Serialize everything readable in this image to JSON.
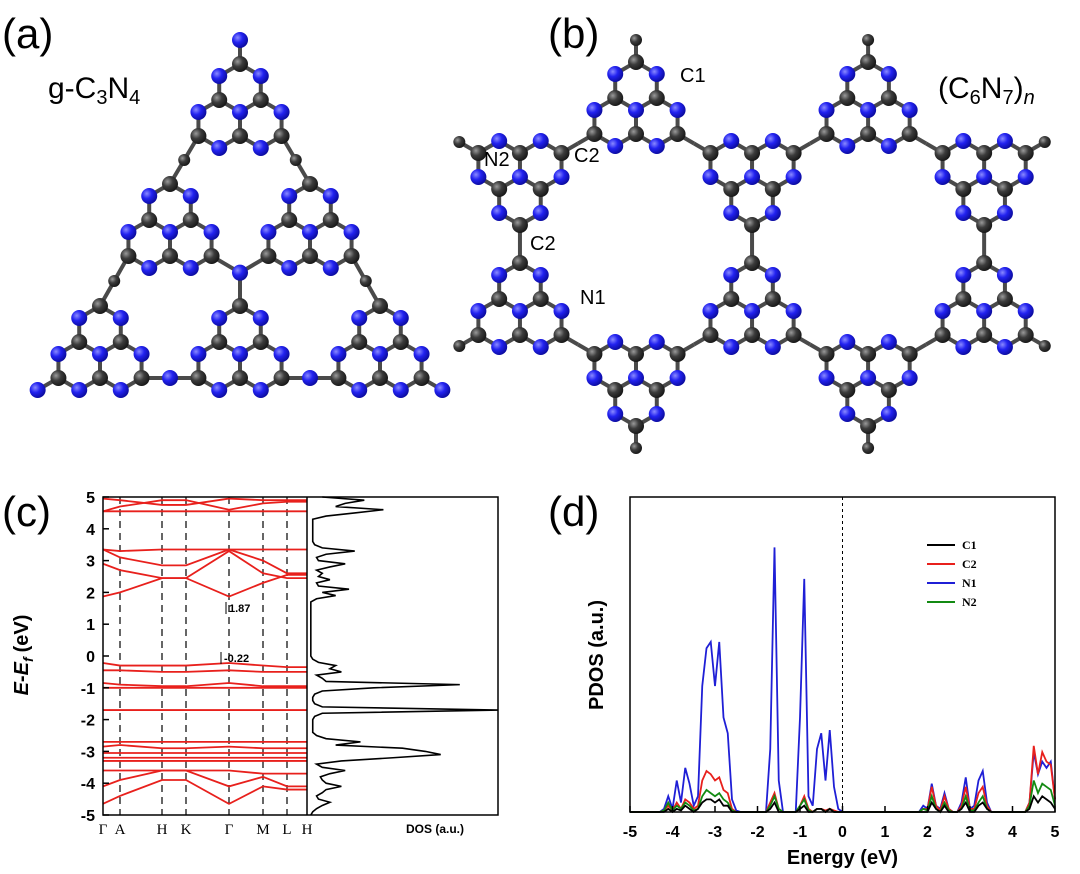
{
  "panels": {
    "a": "(a)",
    "b": "(b)",
    "c": "(c)",
    "d": "(d)"
  },
  "structure_a": {
    "formula": [
      "g-C",
      "3",
      "N",
      "4"
    ]
  },
  "structure_b": {
    "formula": [
      "(C",
      "6",
      "N",
      "7",
      ")",
      "n"
    ],
    "atom_labels": [
      "C1",
      "N2",
      "C2",
      "C2",
      "N1"
    ]
  },
  "chart_data": [
    {
      "type": "band",
      "y_label": [
        "E",
        "-",
        "E",
        "f",
        "(eV)"
      ],
      "categories": [
        "Γ",
        "A",
        "H",
        "K",
        "Γ",
        "M",
        "L",
        "H"
      ],
      "ylim": [
        -5,
        5
      ],
      "yticks": [
        -5,
        -4,
        -3,
        -2,
        -1,
        0,
        1,
        2,
        3,
        4,
        5
      ],
      "annotations": [
        "1.87",
        "-0.22"
      ],
      "series": [
        {
          "color": "#e8201c",
          "values": [
            4.55,
            4.55,
            4.55,
            4.55,
            4.55,
            4.55,
            4.55,
            4.55
          ]
        },
        {
          "color": "#e8201c",
          "values": [
            4.55,
            4.7,
            4.9,
            4.9,
            4.6,
            4.8,
            4.85,
            4.85
          ]
        },
        {
          "color": "#e8201c",
          "values": [
            4.95,
            4.9,
            4.75,
            4.75,
            4.95,
            4.9,
            4.9,
            4.9
          ]
        },
        {
          "color": "#e8201c",
          "values": [
            3.35,
            3.1,
            2.85,
            2.85,
            3.35,
            3.0,
            2.6,
            2.6
          ]
        },
        {
          "color": "#e8201c",
          "values": [
            3.35,
            3.3,
            3.35,
            3.35,
            3.35,
            3.35,
            3.35,
            3.35
          ]
        },
        {
          "color": "#e8201c",
          "values": [
            2.9,
            2.7,
            2.45,
            2.45,
            3.3,
            2.6,
            2.45,
            2.45
          ]
        },
        {
          "color": "#e8201c",
          "values": [
            1.87,
            2.0,
            2.45,
            2.45,
            1.87,
            2.3,
            2.55,
            2.55
          ]
        },
        {
          "color": "#e8201c",
          "values": [
            -0.22,
            -0.3,
            -0.3,
            -0.3,
            -0.22,
            -0.3,
            -0.35,
            -0.35
          ]
        },
        {
          "color": "#e8201c",
          "values": [
            -0.45,
            -0.45,
            -0.5,
            -0.5,
            -0.45,
            -0.5,
            -0.5,
            -0.5
          ]
        },
        {
          "color": "#e8201c",
          "values": [
            -0.85,
            -0.9,
            -0.95,
            -0.95,
            -0.85,
            -0.95,
            -0.95,
            -0.95
          ]
        },
        {
          "color": "#e8201c",
          "values": [
            -1.0,
            -1.0,
            -1.0,
            -1.0,
            -1.0,
            -1.0,
            -1.0,
            -1.0
          ]
        },
        {
          "color": "#e8201c",
          "values": [
            -1.7,
            -1.7,
            -1.7,
            -1.7,
            -1.7,
            -1.7,
            -1.7,
            -1.7
          ]
        },
        {
          "color": "#e8201c",
          "values": [
            -2.7,
            -2.7,
            -2.7,
            -2.7,
            -2.7,
            -2.7,
            -2.7,
            -2.7
          ]
        },
        {
          "color": "#e8201c",
          "values": [
            -2.85,
            -2.8,
            -2.9,
            -2.9,
            -2.85,
            -2.9,
            -2.9,
            -2.9
          ]
        },
        {
          "color": "#e8201c",
          "values": [
            -3.05,
            -3.05,
            -3.05,
            -3.05,
            -3.05,
            -3.05,
            -3.05,
            -3.05
          ]
        },
        {
          "color": "#e8201c",
          "values": [
            -3.2,
            -3.2,
            -3.2,
            -3.2,
            -3.2,
            -3.2,
            -3.2,
            -3.2
          ]
        },
        {
          "color": "#e8201c",
          "values": [
            -3.3,
            -3.3,
            -3.3,
            -3.3,
            -3.3,
            -3.3,
            -3.3,
            -3.3
          ]
        },
        {
          "color": "#e8201c",
          "values": [
            -3.6,
            -3.6,
            -3.6,
            -3.6,
            -3.6,
            -3.7,
            -3.7,
            -3.7
          ]
        },
        {
          "color": "#e8201c",
          "values": [
            -4.1,
            -3.9,
            -3.6,
            -3.6,
            -4.1,
            -3.8,
            -4.1,
            -4.1
          ]
        },
        {
          "color": "#e8201c",
          "values": [
            -4.65,
            -4.4,
            -3.9,
            -3.9,
            -4.65,
            -4.1,
            -4.2,
            -4.2
          ]
        }
      ],
      "dos": {
        "x_label": "DOS (a.u.)",
        "color": "#000000",
        "xlim": [
          0,
          100
        ],
        "energy": [
          -5,
          -4.9,
          -4.8,
          -4.7,
          -4.6,
          -4.5,
          -4.4,
          -4.3,
          -4.2,
          -4.1,
          -4,
          -3.9,
          -3.8,
          -3.7,
          -3.6,
          -3.5,
          -3.4,
          -3.3,
          -3.2,
          -3.1,
          -3,
          -2.9,
          -2.8,
          -2.7,
          -2.6,
          -2.5,
          -2.4,
          -2.3,
          -2.2,
          -2.1,
          -2,
          -1.9,
          -1.8,
          -1.7,
          -1.6,
          -1.5,
          -1.4,
          -1.3,
          -1.2,
          -1.1,
          -1,
          -0.9,
          -0.8,
          -0.7,
          -0.6,
          -0.5,
          -0.4,
          -0.3,
          -0.2,
          -0.1,
          0,
          0.1,
          0.2,
          0.3,
          0.4,
          0.5,
          0.6,
          0.7,
          0.8,
          0.9,
          1,
          1.1,
          1.2,
          1.3,
          1.4,
          1.5,
          1.6,
          1.7,
          1.8,
          1.9,
          2,
          2.1,
          2.2,
          2.3,
          2.4,
          2.5,
          2.6,
          2.7,
          2.8,
          2.9,
          3,
          3.1,
          3.2,
          3.3,
          3.4,
          3.5,
          3.6,
          3.7,
          3.8,
          3.9,
          4,
          4.1,
          4.2,
          4.3,
          4.4,
          4.5,
          4.6,
          4.7,
          4.8,
          4.9,
          5
        ],
        "values": [
          2,
          3,
          5,
          8,
          12,
          6,
          5,
          8,
          10,
          18,
          10,
          8,
          7,
          12,
          20,
          8,
          5,
          18,
          45,
          70,
          62,
          50,
          15,
          28,
          10,
          5,
          3,
          3,
          3,
          3,
          3,
          4,
          8,
          100,
          8,
          4,
          3,
          3,
          4,
          8,
          35,
          80,
          10,
          8,
          5,
          18,
          12,
          15,
          6,
          3,
          2,
          2,
          2,
          2,
          2,
          2,
          2,
          2,
          2,
          2,
          2,
          2,
          2,
          2,
          2,
          2,
          2,
          2,
          5,
          15,
          8,
          22,
          6,
          5,
          12,
          6,
          8,
          5,
          12,
          20,
          6,
          5,
          10,
          25,
          8,
          4,
          3,
          3,
          3,
          3,
          3,
          3,
          3,
          3,
          10,
          25,
          40,
          15,
          20,
          30,
          8
        ]
      }
    },
    {
      "type": "line",
      "x_label": "Energy (eV)",
      "y_label": "PDOS (a.u.)",
      "xlim": [
        -5,
        5
      ],
      "xticks": [
        -5,
        -4,
        -3,
        -2,
        -1,
        0,
        1,
        2,
        3,
        4,
        5
      ],
      "ylim": [
        0,
        100
      ],
      "zero_line": true,
      "legend": "top-right",
      "x": [
        -5,
        -4.9,
        -4.8,
        -4.7,
        -4.6,
        -4.5,
        -4.4,
        -4.3,
        -4.2,
        -4.1,
        -4,
        -3.9,
        -3.8,
        -3.7,
        -3.6,
        -3.5,
        -3.4,
        -3.3,
        -3.2,
        -3.1,
        -3,
        -2.9,
        -2.8,
        -2.7,
        -2.6,
        -2.5,
        -2.4,
        -2.3,
        -2.2,
        -2.1,
        -2,
        -1.9,
        -1.8,
        -1.7,
        -1.6,
        -1.5,
        -1.4,
        -1.3,
        -1.2,
        -1.1,
        -1,
        -0.9,
        -0.8,
        -0.7,
        -0.6,
        -0.5,
        -0.4,
        -0.3,
        -0.2,
        -0.1,
        0,
        0.1,
        0.2,
        0.3,
        0.4,
        0.5,
        0.6,
        0.7,
        0.8,
        0.9,
        1,
        1.1,
        1.2,
        1.3,
        1.4,
        1.5,
        1.6,
        1.7,
        1.8,
        1.9,
        2,
        2.1,
        2.2,
        2.3,
        2.4,
        2.5,
        2.6,
        2.7,
        2.8,
        2.9,
        3,
        3.1,
        3.2,
        3.3,
        3.4,
        3.5,
        3.6,
        3.7,
        3.8,
        3.9,
        4,
        4.1,
        4.2,
        4.3,
        4.4,
        4.5,
        4.6,
        4.7,
        4.8,
        4.9,
        5
      ],
      "series": [
        {
          "name": "C1",
          "color": "#000000",
          "values": [
            0,
            0,
            0,
            0,
            0,
            0,
            0,
            0,
            0,
            1,
            0,
            1,
            0.5,
            2,
            1,
            0,
            1,
            3,
            4,
            4,
            3,
            4,
            2,
            2,
            0,
            0,
            0,
            0,
            0,
            0,
            0,
            0,
            0,
            1,
            3,
            0,
            0,
            0,
            0,
            0,
            1,
            2,
            0,
            0,
            1,
            1,
            0,
            1,
            0,
            0,
            0,
            0,
            0,
            0,
            0,
            0,
            0,
            0,
            0,
            0,
            0,
            0,
            0,
            0,
            0,
            0,
            0,
            0,
            0,
            0,
            0,
            3,
            1,
            0,
            2,
            0,
            0,
            0,
            1,
            3,
            0,
            0,
            2,
            3,
            1,
            0,
            0,
            0,
            0,
            0,
            0,
            0,
            0,
            0,
            1,
            5,
            3,
            5,
            4,
            3,
            1
          ]
        },
        {
          "name": "C2",
          "color": "#e8201c",
          "values": [
            0,
            0,
            0,
            0,
            0,
            0,
            0,
            0,
            0.5,
            2,
            0.5,
            3,
            1,
            4,
            3,
            1,
            2,
            10,
            13,
            12,
            10,
            11,
            7,
            6,
            1,
            0,
            0,
            0,
            0,
            0,
            0,
            0,
            0,
            3,
            6,
            1,
            0,
            0,
            0,
            0,
            2,
            5,
            1,
            0,
            1,
            1,
            0.5,
            1,
            0.5,
            0,
            0,
            0,
            0,
            0,
            0,
            0,
            0,
            0,
            0,
            0,
            0,
            0,
            0,
            0,
            0,
            0,
            0,
            0,
            0,
            1,
            1,
            8,
            2,
            0.5,
            5,
            1,
            0,
            0,
            2,
            8,
            1,
            1,
            6,
            8,
            2,
            0,
            0,
            0,
            0,
            0,
            0,
            0,
            0,
            0,
            3,
            21,
            12,
            19,
            16,
            15,
            4
          ]
        },
        {
          "name": "N1",
          "color": "#1f1fd6",
          "values": [
            0,
            0,
            0,
            0,
            0,
            0,
            0,
            0,
            1,
            5,
            1,
            10,
            3,
            14,
            9,
            2,
            5,
            40,
            52,
            54,
            40,
            54,
            30,
            25,
            4,
            0.5,
            0,
            0,
            0,
            0,
            0,
            0,
            0,
            20,
            84,
            10,
            0,
            0,
            0,
            0,
            30,
            74,
            5,
            2,
            20,
            25,
            10,
            26,
            8,
            1,
            0,
            0,
            0,
            0,
            0,
            0,
            0,
            0,
            0,
            0,
            0,
            0,
            0,
            0,
            0,
            0,
            0,
            0,
            0,
            2,
            1,
            9,
            2,
            1,
            6,
            1,
            0,
            0,
            3,
            11,
            1,
            2,
            10,
            13,
            3,
            0,
            0,
            0,
            0,
            0,
            0,
            0,
            0,
            0,
            3,
            19,
            12,
            16,
            14,
            16,
            4
          ]
        },
        {
          "name": "N2",
          "color": "#138a13",
          "values": [
            0,
            0,
            0,
            0,
            0,
            0,
            0,
            0,
            0.5,
            3,
            0.5,
            2,
            1,
            3,
            2,
            0.5,
            1,
            5,
            7,
            6,
            5,
            6,
            4,
            3,
            0.5,
            0,
            0,
            0,
            0,
            0,
            0,
            0,
            0,
            2,
            5,
            1,
            0,
            0,
            0,
            0,
            2,
            4,
            0.5,
            0,
            1,
            1,
            0,
            1,
            0,
            0,
            0,
            0,
            0,
            0,
            0,
            0,
            0,
            0,
            0,
            0,
            0,
            0,
            0,
            0,
            0,
            0,
            0,
            0,
            0,
            1,
            0.5,
            5,
            1,
            0,
            3,
            0.5,
            0,
            0,
            1,
            5,
            0.5,
            0.5,
            3,
            5,
            1,
            0,
            0,
            0,
            0,
            0,
            0,
            0,
            0,
            0,
            2,
            10,
            6,
            9,
            8,
            7,
            2
          ]
        }
      ]
    }
  ]
}
